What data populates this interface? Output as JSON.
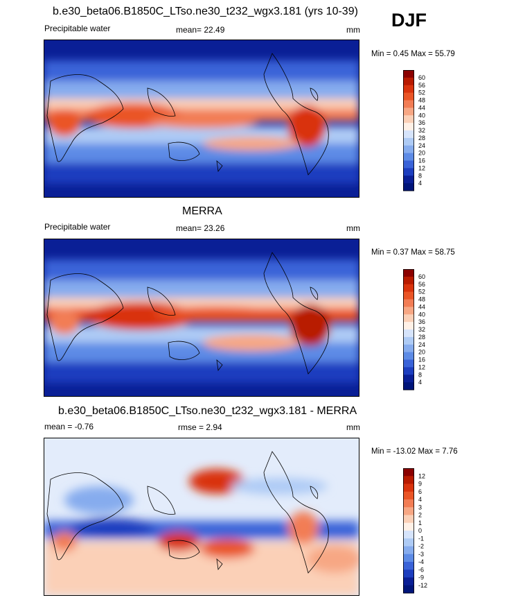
{
  "season": "DJF",
  "panels": [
    {
      "title": "b.e30_beta06.B1850C_LTso.ne30_t232_wgx3.181 (yrs 10-39)",
      "left_label": "Precipitable water",
      "center_label": "mean=  22.49",
      "units": "mm",
      "minmax": "Min =   0.45 Max =  55.79",
      "colorbar": {
        "labels": [
          "60",
          "56",
          "52",
          "48",
          "44",
          "40",
          "36",
          "32",
          "28",
          "24",
          "20",
          "16",
          "12",
          "8",
          "4"
        ],
        "colors": [
          "#8b0000",
          "#b81a00",
          "#d9330d",
          "#ea5526",
          "#f27d55",
          "#f7a784",
          "#fbd0b7",
          "#fff1e7",
          "#d6e4fb",
          "#aecbf5",
          "#86acee",
          "#5d8be6",
          "#3a63d8",
          "#1d3ebf",
          "#0a1f96",
          "#00157a"
        ]
      },
      "chart_data": {
        "type": "heatmap",
        "title": "b.e30_beta06.B1850C_LTso.ne30_t232_wgx3.181 (yrs 10-39)",
        "subtitle": "Precipitable water",
        "units": "mm",
        "mean": 22.49,
        "min": 0.45,
        "max": 55.79,
        "contour_levels": [
          4,
          8,
          12,
          16,
          20,
          24,
          28,
          32,
          36,
          40,
          44,
          48,
          52,
          56,
          60
        ],
        "map": "global, Pacific-centered"
      }
    },
    {
      "title": "MERRA",
      "left_label": "Precipitable water",
      "center_label": "mean=  23.26",
      "units": "mm",
      "minmax": "Min =   0.37 Max =  58.75",
      "colorbar": {
        "labels": [
          "60",
          "56",
          "52",
          "48",
          "44",
          "40",
          "36",
          "32",
          "28",
          "24",
          "20",
          "16",
          "12",
          "8",
          "4"
        ],
        "colors": [
          "#8b0000",
          "#b81a00",
          "#d9330d",
          "#ea5526",
          "#f27d55",
          "#f7a784",
          "#fbd0b7",
          "#fff1e7",
          "#d6e4fb",
          "#aecbf5",
          "#86acee",
          "#5d8be6",
          "#3a63d8",
          "#1d3ebf",
          "#0a1f96",
          "#00157a"
        ]
      },
      "chart_data": {
        "type": "heatmap",
        "title": "MERRA",
        "subtitle": "Precipitable water",
        "units": "mm",
        "mean": 23.26,
        "min": 0.37,
        "max": 58.75,
        "contour_levels": [
          4,
          8,
          12,
          16,
          20,
          24,
          28,
          32,
          36,
          40,
          44,
          48,
          52,
          56,
          60
        ],
        "map": "global, Pacific-centered"
      }
    },
    {
      "title": "b.e30_beta06.B1850C_LTso.ne30_t232_wgx3.181 - MERRA",
      "left_label": "mean =  -0.76",
      "center_label": "rmse =   2.94",
      "units": "mm",
      "minmax": "Min = -13.02 Max =   7.76",
      "colorbar": {
        "labels": [
          "12",
          "9",
          "6",
          "4",
          "3",
          "2",
          "1",
          "0",
          "-1",
          "-2",
          "-3",
          "-4",
          "-6",
          "-9",
          "-12"
        ],
        "colors": [
          "#8b0000",
          "#b81a00",
          "#d9330d",
          "#ea5526",
          "#f27d55",
          "#f7a784",
          "#fbd0b7",
          "#fff1e7",
          "#d6e4fb",
          "#aecbf5",
          "#86acee",
          "#5d8be6",
          "#3a63d8",
          "#1d3ebf",
          "#0a1f96",
          "#00157a"
        ]
      },
      "chart_data": {
        "type": "heatmap",
        "title": "b.e30_beta06.B1850C_LTso.ne30_t232_wgx3.181 - MERRA",
        "units": "mm",
        "mean": -0.76,
        "rmse": 2.94,
        "min": -13.02,
        "max": 7.76,
        "contour_levels": [
          -12,
          -9,
          -6,
          -4,
          -3,
          -2,
          -1,
          0,
          1,
          2,
          3,
          4,
          6,
          9,
          12
        ],
        "map": "global, Pacific-centered"
      }
    }
  ]
}
